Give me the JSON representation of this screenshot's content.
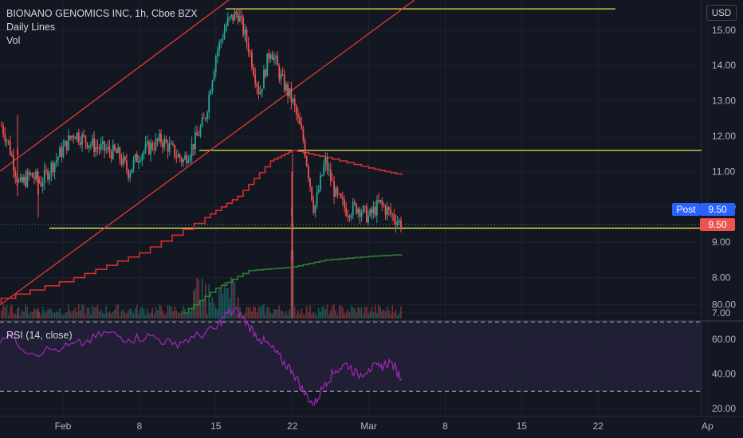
{
  "legend": {
    "title": "BIONANO GENOMICS INC, 1h, Cboe BZX",
    "line2": "Daily Lines",
    "line3": "Vol"
  },
  "rsi_legend": "RSI (14, close)",
  "currency": "USD",
  "post_label": "Post",
  "post_value": "9.50",
  "last_value": "9.50",
  "colors": {
    "background": "#131722",
    "up": "#26a69a",
    "down": "#ef5350",
    "channel": "#e53935",
    "horizontal": "#e8e84a",
    "resistance_step": "#d32f2f",
    "support_step": "#2e7d32",
    "rsi": "#9c27b0"
  },
  "chart_data": [
    {
      "type": "candlestick",
      "title": "BIONANO GENOMICS INC, 1h, Cboe BZX",
      "ylabel": "USD",
      "ylim": [
        6.8,
        15.8
      ],
      "y_ticks": [
        7.0,
        8.0,
        9.0,
        10.0,
        11.0,
        12.0,
        13.0,
        14.0,
        15.0
      ],
      "x_ticks": [
        "Feb",
        "8",
        "15",
        "22",
        "Mar",
        "8",
        "15",
        "22",
        "Ap"
      ],
      "grid": true,
      "price_path": [
        {
          "x": "Jan 26",
          "y": 12.6
        },
        {
          "x": "Jan 27",
          "y": 11.8
        },
        {
          "x": "Jan 28",
          "y": 10.6
        },
        {
          "x": "Jan 29",
          "y": 10.9
        },
        {
          "x": "Jan 30",
          "y": 10.7
        },
        {
          "x": "Feb 2",
          "y": 12.1
        },
        {
          "x": "Feb 4",
          "y": 11.7
        },
        {
          "x": "Feb 6",
          "y": 11.5
        },
        {
          "x": "Feb 7",
          "y": 11.0
        },
        {
          "x": "Feb 8",
          "y": 11.5
        },
        {
          "x": "Feb 10",
          "y": 11.9
        },
        {
          "x": "Feb 12",
          "y": 11.3
        },
        {
          "x": "Feb 13",
          "y": 11.8
        },
        {
          "x": "Feb 14",
          "y": 12.5
        },
        {
          "x": "Feb 15",
          "y": 14.3
        },
        {
          "x": "Feb 16",
          "y": 15.2
        },
        {
          "x": "Feb 17",
          "y": 15.5
        },
        {
          "x": "Feb 18",
          "y": 14.5
        },
        {
          "x": "Feb 19",
          "y": 13.2
        },
        {
          "x": "Feb 20",
          "y": 14.5
        },
        {
          "x": "Feb 21",
          "y": 13.6
        },
        {
          "x": "Feb 22",
          "y": 13.0
        },
        {
          "x": "Feb 23",
          "y": 11.9
        },
        {
          "x": "Feb 24",
          "y": 9.9
        },
        {
          "x": "Feb 25",
          "y": 11.3
        },
        {
          "x": "Feb 26",
          "y": 10.3
        },
        {
          "x": "Feb 27",
          "y": 9.9
        },
        {
          "x": "Feb 28",
          "y": 10.0
        },
        {
          "x": "Mar 1",
          "y": 9.7
        },
        {
          "x": "Mar 2",
          "y": 10.1
        },
        {
          "x": "Mar 3",
          "y": 9.8
        },
        {
          "x": "Mar 4",
          "y": 9.5
        }
      ],
      "horizontal_lines": [
        15.6,
        11.6,
        9.4
      ],
      "resistance_step_line": [
        {
          "x": "Jan 25",
          "y": 7.3
        },
        {
          "x": "Feb 2",
          "y": 8.0
        },
        {
          "x": "Feb 8",
          "y": 8.7
        },
        {
          "x": "Feb 14",
          "y": 9.7
        },
        {
          "x": "Feb 17",
          "y": 10.3
        },
        {
          "x": "Feb 20",
          "y": 11.3
        },
        {
          "x": "Feb 22",
          "y": 11.6
        },
        {
          "x": "Feb 25",
          "y": 11.4
        },
        {
          "x": "Mar 1",
          "y": 11.1
        },
        {
          "x": "Mar 4",
          "y": 10.9
        }
      ],
      "support_step_line": [
        {
          "x": "Feb 12",
          "y": 7.0
        },
        {
          "x": "Feb 15",
          "y": 7.7
        },
        {
          "x": "Feb 18",
          "y": 8.2
        },
        {
          "x": "Feb 22",
          "y": 8.3
        },
        {
          "x": "Feb 25",
          "y": 8.5
        },
        {
          "x": "Mar 1",
          "y": 8.6
        },
        {
          "x": "Mar 4",
          "y": 8.65
        }
      ],
      "channel_lines": [
        {
          "from": {
            "x": "Jan 25",
            "y": 12.0
          },
          "to": {
            "x": "Mar 5",
            "y": 15.8
          }
        },
        {
          "from": {
            "x": "Jan 25",
            "y": 7.3
          },
          "to": {
            "x": "Mar 5",
            "y": 15.8
          }
        }
      ],
      "last_price": 9.5
    },
    {
      "type": "line",
      "title": "RSI (14, close)",
      "ylim": [
        15,
        85
      ],
      "y_ticks": [
        20.0,
        40.0,
        60.0,
        80.0
      ],
      "bands": [
        30,
        70
      ],
      "x": [
        "Jan 25",
        "Jan 27",
        "Jan 29",
        "Feb 1",
        "Feb 3",
        "Feb 5",
        "Feb 7",
        "Feb 9",
        "Feb 11",
        "Feb 13",
        "Feb 15",
        "Feb 16",
        "Feb 17",
        "Feb 18",
        "Feb 19",
        "Feb 20",
        "Feb 21",
        "Feb 22",
        "Feb 23",
        "Feb 24",
        "Feb 25",
        "Feb 26",
        "Feb 27",
        "Feb 28",
        "Mar 1",
        "Mar 2",
        "Mar 3",
        "Mar 4"
      ],
      "values": [
        58,
        63,
        52,
        55,
        58,
        64,
        60,
        62,
        57,
        61,
        66,
        75,
        76,
        68,
        60,
        56,
        48,
        42,
        30,
        22,
        35,
        42,
        46,
        39,
        43,
        44,
        47,
        37
      ]
    }
  ]
}
